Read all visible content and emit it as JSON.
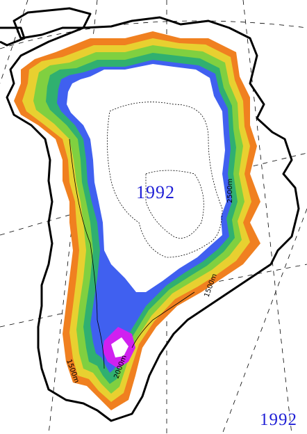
{
  "map": {
    "year_center": "1992",
    "year_corner": "1992",
    "contour_labels": {
      "c2500": "2500m",
      "c1500_west": "1500m",
      "c1500_east": "1500m",
      "c2000": "2000m"
    }
  },
  "colors": {
    "coast": "#000000",
    "grid": "#000000",
    "interior": "#ffffff",
    "label_blue": "#1f1fd6",
    "scale": [
      "#d80000",
      "#f06020",
      "#f8a020",
      "#f0e030",
      "#b8e040",
      "#70d040",
      "#30c060",
      "#3070f0",
      "#7040f0",
      "#d020f0"
    ]
  }
}
